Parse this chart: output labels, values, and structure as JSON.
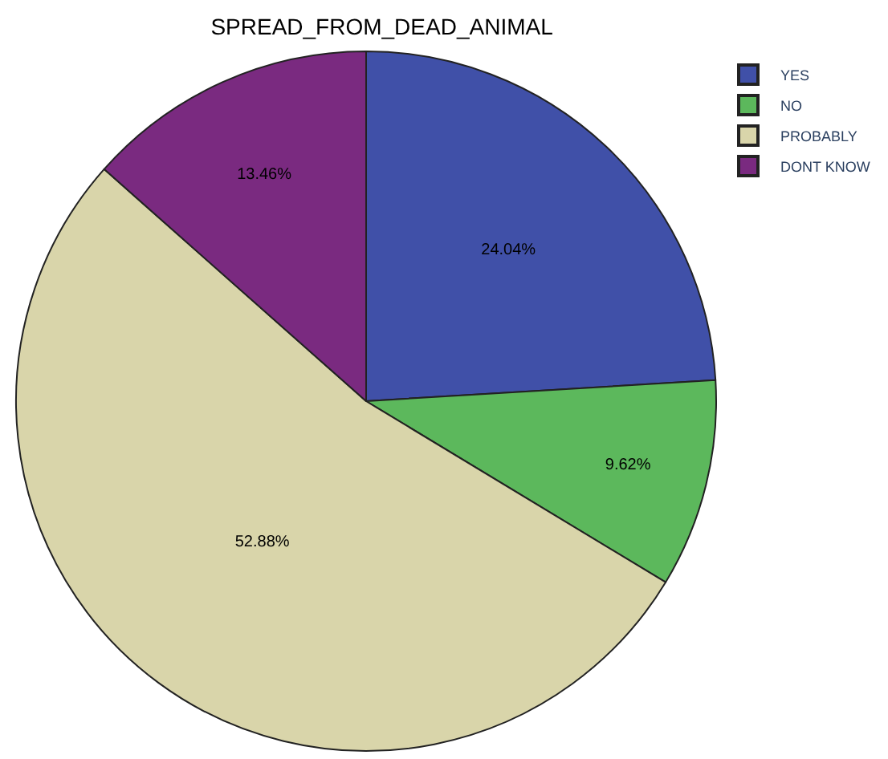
{
  "chart_data": {
    "type": "pie",
    "title": "SPREAD_FROM_DEAD_ANIMAL",
    "categories": [
      "YES",
      "NO",
      "PROBABLY",
      "DONT KNOW"
    ],
    "values": [
      24.04,
      9.62,
      52.88,
      13.46
    ],
    "colors": [
      "#4050a8",
      "#5cb85c",
      "#d9d5aa",
      "#7a2a80"
    ],
    "value_labels": [
      "24.04%",
      "9.62%",
      "52.88%",
      "13.46%"
    ],
    "legend": "top right"
  }
}
